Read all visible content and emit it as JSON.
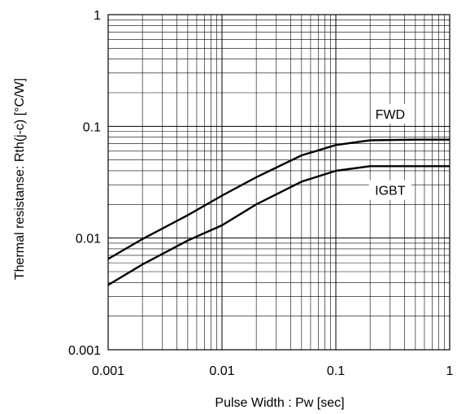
{
  "chart_data": {
    "type": "line",
    "title": "",
    "xlabel": "Pulse Width : Pw [sec]",
    "ylabel": "Thermal resistanse: Rth(j-c) [°C/W]",
    "xscale": "log",
    "yscale": "log",
    "xlim": [
      0.001,
      1
    ],
    "ylim": [
      0.001,
      1
    ],
    "grid": true,
    "legend": "none",
    "x_ticks": [
      "0.001",
      "0.01",
      "0.1",
      "1"
    ],
    "y_ticks": [
      "0.001",
      "0.01",
      "0.1",
      "1"
    ],
    "series": [
      {
        "name": "FWD",
        "x": [
          0.001,
          0.002,
          0.005,
          0.01,
          0.02,
          0.05,
          0.1,
          0.2,
          0.5,
          1
        ],
        "y": [
          0.0065,
          0.0098,
          0.016,
          0.024,
          0.035,
          0.055,
          0.068,
          0.075,
          0.076,
          0.076
        ]
      },
      {
        "name": "IGBT",
        "x": [
          0.001,
          0.002,
          0.005,
          0.01,
          0.02,
          0.05,
          0.1,
          0.2,
          0.5,
          1
        ],
        "y": [
          0.0038,
          0.0058,
          0.0095,
          0.013,
          0.02,
          0.032,
          0.04,
          0.044,
          0.044,
          0.044
        ]
      }
    ]
  }
}
